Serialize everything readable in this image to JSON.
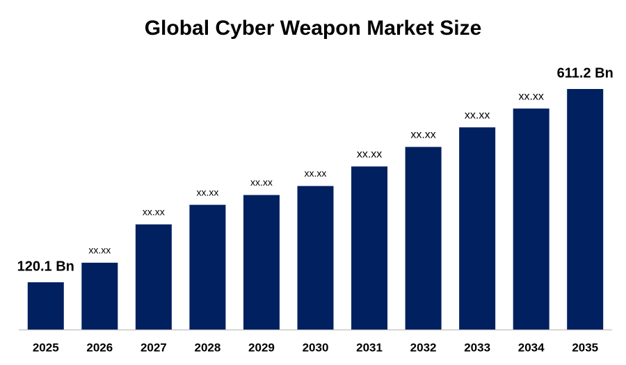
{
  "chart_data": {
    "type": "bar",
    "title": "Global Cyber Weapon Market Size",
    "categories": [
      "2025",
      "2026",
      "2027",
      "2028",
      "2029",
      "2030",
      "2031",
      "2032",
      "2033",
      "2034",
      "2035"
    ],
    "values": [
      120.1,
      169.8,
      267.2,
      316.9,
      341.8,
      364.7,
      414.4,
      464.0,
      513.7,
      561.5,
      611.2
    ],
    "value_labels": [
      "120.1 Bn",
      "xx.xx",
      "xx.xx",
      "xx.xx",
      "xx.xx",
      "xx.xx",
      "xx.xx",
      "xx.xx",
      "xx.xx",
      "xx.xx",
      "611.2 Bn"
    ],
    "color": "#002060"
  }
}
